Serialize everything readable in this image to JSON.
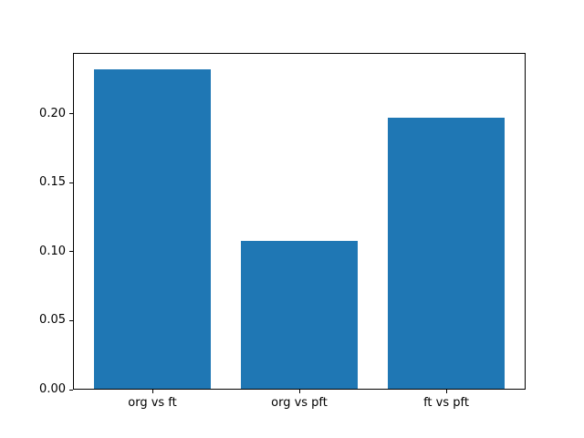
{
  "chart_data": {
    "type": "bar",
    "title": "",
    "xlabel": "",
    "ylabel": "",
    "categories": [
      "org vs ft",
      "org vs pft",
      "ft vs pft"
    ],
    "values": [
      0.232,
      0.108,
      0.197
    ],
    "bar_color": "#1f77b4",
    "bar_width": 0.8,
    "xlim": [
      -0.54,
      2.54
    ],
    "ylim": [
      0,
      0.244
    ],
    "yticks": [
      {
        "value": 0.0,
        "label": "0.00"
      },
      {
        "value": 0.05,
        "label": "0.05"
      },
      {
        "value": 0.1,
        "label": "0.10"
      },
      {
        "value": 0.15,
        "label": "0.15"
      },
      {
        "value": 0.2,
        "label": "0.20"
      }
    ],
    "grid": false,
    "legend": null,
    "background_color": "#ffffff",
    "spine_color": "#000000",
    "text_color": "#000000"
  }
}
